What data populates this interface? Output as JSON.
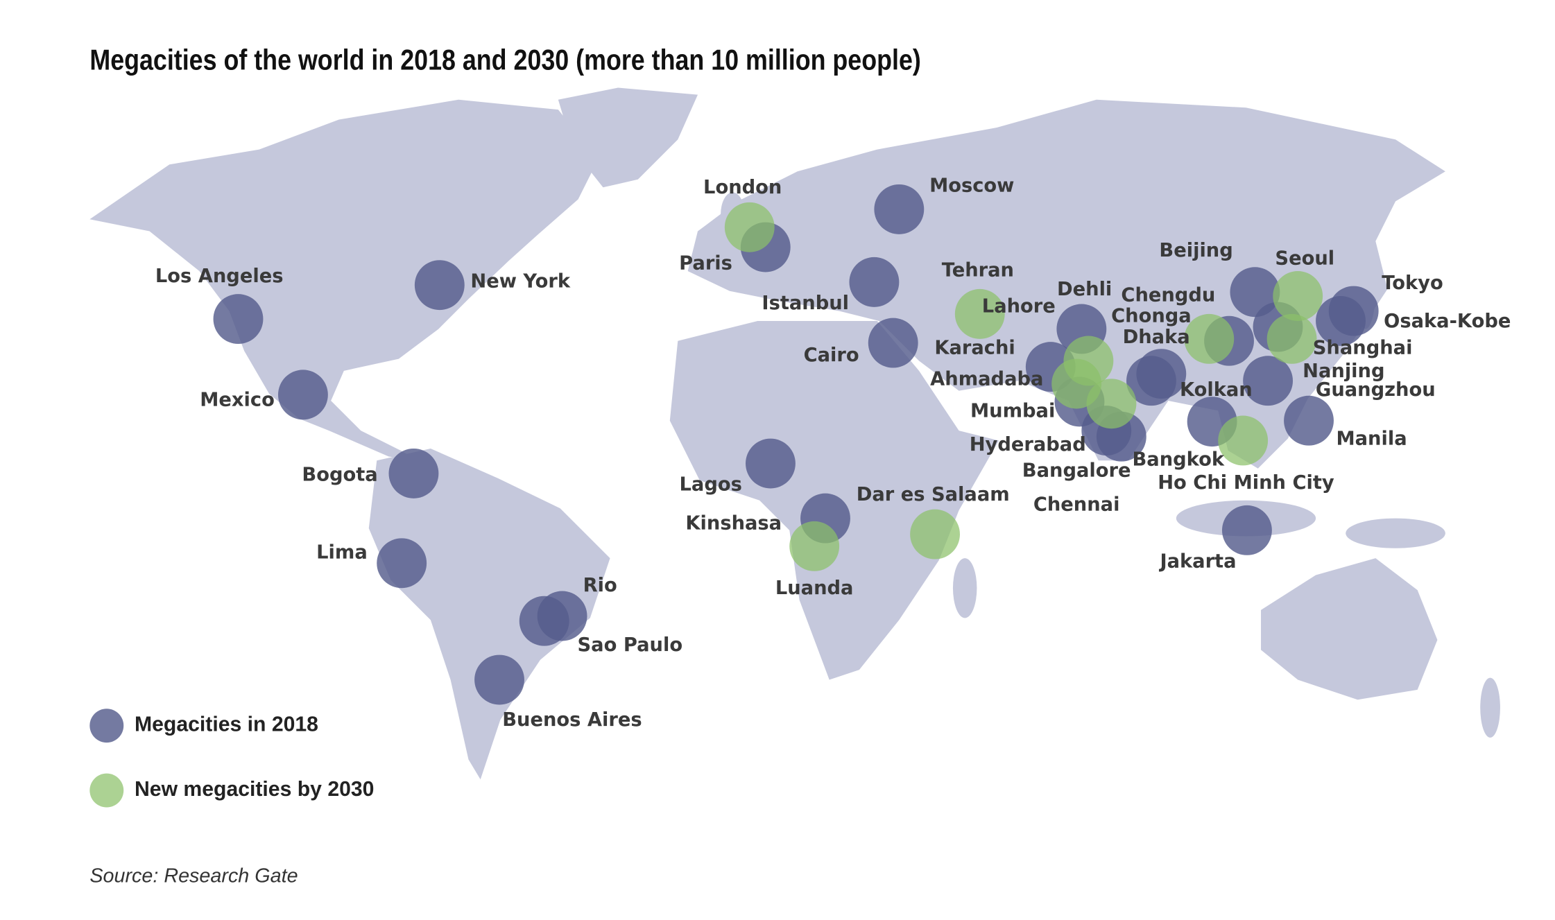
{
  "title": "Megacities of the world in 2018 and 2030 (more than 10 million people)",
  "groups": [
    {
      "label": "Megacities in 2018",
      "color": "#565d8c",
      "cities": [
        "Los Angeles",
        "New York",
        "Mexico",
        "Bogota",
        "Lima",
        "Rio",
        "Sao Paulo",
        "Buenos Aires",
        "Paris",
        "Moscow",
        "Istanbul",
        "Cairo",
        "Lagos",
        "Kinshasa",
        "Karachi",
        "Dehli",
        "Mumbai",
        "Bangalore",
        "Chennai",
        "Dhaka",
        "Kolkan",
        "Chonga",
        "Beijing",
        "Shanghai",
        "Guangzhou",
        "Bangkok",
        "Manila",
        "Jakarta",
        "Tokyo",
        "Osaka-Kobe"
      ]
    },
    {
      "label": "New megacities by 2030",
      "color": "#8cc06a",
      "cities": [
        "London",
        "Tehran",
        "Lahore",
        "Ahmadaba",
        "Hyderabad",
        "Chengdu",
        "Seoul",
        "Nanjing",
        "Ho Chi Minh City",
        "Luanda",
        "Dar es Salaam"
      ]
    }
  ],
  "source": "Source: Research Gate"
}
